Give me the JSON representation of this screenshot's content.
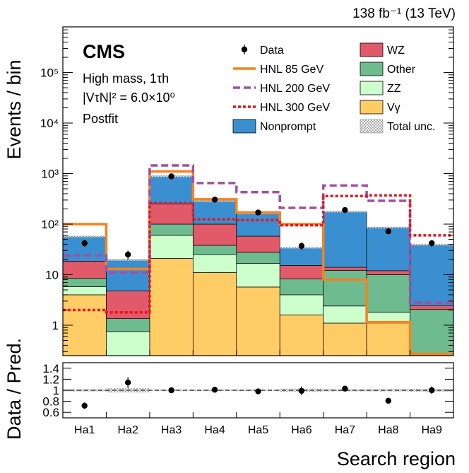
{
  "chart_data": {
    "type": "bar",
    "stacked": true,
    "y_scale": "log",
    "lumi": "138 fb⁻¹ (13 TeV)",
    "experiment": "CMS",
    "info_lines": [
      "High mass, 1τh",
      "|VτN|² = 6.0×10⁰",
      "Postfit"
    ],
    "ylabel": "Events / bin",
    "ratio_ylabel": "Data / Pred.",
    "xlabel": "Search region",
    "categories": [
      "Ha1",
      "Ha2",
      "Ha3",
      "Ha4",
      "Ha5",
      "Ha6",
      "Ha7",
      "Ha8",
      "Ha9"
    ],
    "ylim": [
      0.25,
      800000
    ],
    "y_ticks": [
      {
        "value": 1,
        "label": "1"
      },
      {
        "value": 10,
        "label": "10"
      },
      {
        "value": 100,
        "label": "10²"
      },
      {
        "value": 1000,
        "label": "10³"
      },
      {
        "value": 10000,
        "label": "10⁴"
      },
      {
        "value": 100000,
        "label": "10⁵"
      }
    ],
    "ratio_ylim": [
      0.5,
      1.5
    ],
    "ratio_ticks": [
      0.6,
      0.8,
      1,
      1.2,
      1.4
    ],
    "ratio_tick_labels": [
      "0.6",
      "0.8",
      "1",
      "1.2",
      "1.4"
    ],
    "stack_order": [
      "Vγ",
      "ZZ",
      "Other",
      "WZ",
      "Nonprompt"
    ],
    "series": [
      {
        "name": "Vγ",
        "legend": "Vγ",
        "color": "#ffcc66",
        "values": [
          4,
          0.25,
          21,
          11,
          5.7,
          1.6,
          1.1,
          1.1,
          0.25
        ]
      },
      {
        "name": "ZZ",
        "legend": "ZZ",
        "color": "#ccffcc",
        "values": [
          1.8,
          0.75,
          39,
          14,
          11,
          2.4,
          1.3,
          0.7,
          0.15
        ]
      },
      {
        "name": "Other",
        "legend": "Other",
        "color": "#6dbb8f",
        "values": [
          2.7,
          0.6,
          40,
          13,
          11,
          4.2,
          9.8,
          8.2,
          1.9
        ]
      },
      {
        "name": "WZ",
        "legend": "WZ",
        "color": "#e05a6a",
        "values": [
          10,
          3.4,
          150,
          62,
          30,
          7,
          1.8,
          2,
          0.4
        ]
      },
      {
        "name": "Nonprompt",
        "legend": "Nonprompt",
        "color": "#3a8fd0",
        "values": [
          39,
          15,
          650,
          190,
          108,
          19,
          165,
          75,
          37
        ]
      }
    ],
    "signals": [
      {
        "name": "HNL 85 GeV",
        "legend": "HNL 85 GeV",
        "color": "#f58220",
        "style": "solid",
        "values": [
          100,
          13,
          1100,
          310,
          170,
          100,
          8,
          1.15,
          0.27
        ]
      },
      {
        "name": "HNL 200 GeV",
        "legend": "HNL 200 GeV",
        "color": "#a050a0",
        "style": "dashed",
        "values": [
          24,
          11,
          1450,
          650,
          430,
          210,
          580,
          290,
          2.8
        ]
      },
      {
        "name": "HNL 300 GeV",
        "legend": "HNL 300 GeV",
        "color": "#e8141c",
        "style": "dotted",
        "values": [
          2,
          1.8,
          260,
          125,
          120,
          95,
          360,
          370,
          60
        ]
      }
    ],
    "data": {
      "name": "Data",
      "legend": "Data",
      "values": [
        42,
        25,
        880,
        305,
        170,
        37,
        190,
        72,
        42
      ],
      "errors": [
        6.5,
        5,
        30,
        17.5,
        13,
        6,
        14,
        8.5,
        6.5
      ]
    },
    "ratio": {
      "values": [
        0.72,
        1.14,
        1.0,
        1.01,
        0.98,
        0.99,
        1.03,
        0.81,
        1.0
      ],
      "errors": [
        0.06,
        0.1,
        0.015,
        0.03,
        0.02,
        0.08,
        0.04,
        0.05,
        0.07
      ],
      "unc": [
        0.02,
        0.04,
        0.015,
        0.015,
        0.015,
        0.03,
        0.02,
        0.02,
        0.025
      ]
    },
    "unc_legend": "Total unc."
  }
}
